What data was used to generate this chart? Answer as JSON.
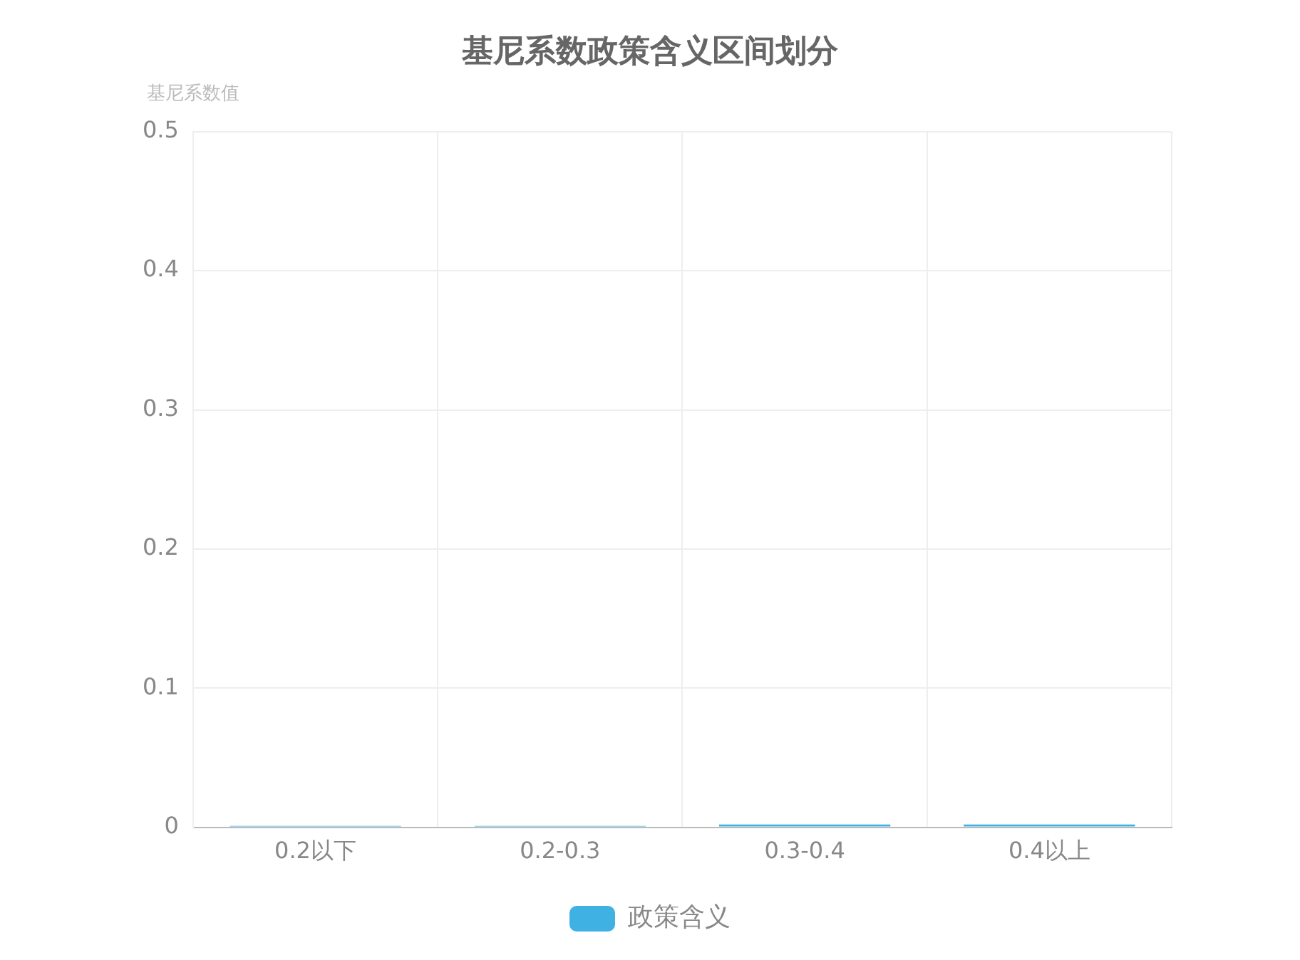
{
  "chart_data": {
    "type": "bar",
    "title": "基尼系数政策含义区间划分",
    "ylabel": "基尼系数值",
    "categories": [
      "0.2以下",
      "0.2-0.3",
      "0.3-0.4",
      "0.4以上"
    ],
    "series": [
      {
        "name": "政策含义",
        "color": "#3fb1e3",
        "values": [
          0.001,
          0.001,
          0.002,
          0.002
        ]
      }
    ],
    "ylim": [
      0,
      0.5
    ],
    "yticks": [
      0,
      0.1,
      0.2,
      0.3,
      0.4,
      0.5
    ],
    "grid": true,
    "legend": "bottom"
  }
}
